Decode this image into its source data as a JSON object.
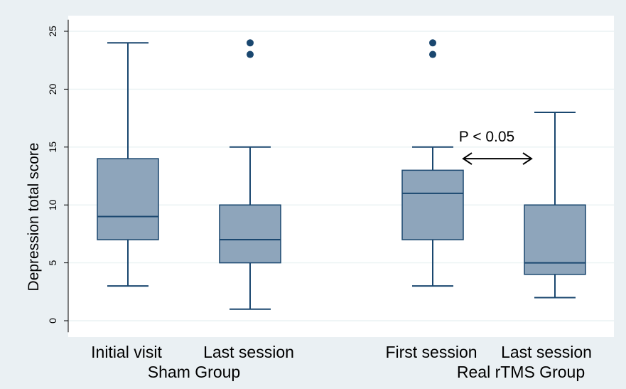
{
  "chart_data": {
    "type": "box",
    "ylabel": "Depression total score",
    "ylim": [
      -1,
      26
    ],
    "yticks": [
      0,
      5,
      10,
      15,
      20,
      25
    ],
    "grid": true,
    "boxes": [
      {
        "label": "Initial visit",
        "whisker_low": 3,
        "q1": 7,
        "median": 9,
        "q3": 14,
        "whisker_high": 24,
        "outliers": []
      },
      {
        "label": "Last session",
        "whisker_low": 1,
        "q1": 5,
        "median": 7,
        "q3": 10,
        "whisker_high": 15,
        "outliers": [
          23,
          24
        ]
      },
      {
        "label": "First session",
        "whisker_low": 3,
        "q1": 7,
        "median": 11,
        "q3": 13,
        "whisker_high": 15,
        "outliers": [
          23,
          24
        ]
      },
      {
        "label": "Last session",
        "whisker_low": 2,
        "q1": 4,
        "median": 5,
        "q3": 10,
        "whisker_high": 18,
        "outliers": []
      }
    ],
    "groups": [
      {
        "label": "Sham Group",
        "boxes": [
          0,
          1
        ]
      },
      {
        "label": "Real rTMS Group",
        "boxes": [
          2,
          3
        ]
      }
    ],
    "annotation": {
      "text": "P < 0.05",
      "y": 14,
      "between": [
        2,
        3
      ]
    },
    "colors": {
      "box_fill": "#8ea5bb",
      "box_edge": "#1a476f",
      "outlier": "#1a476f",
      "grid": "#eaf2f3",
      "background": "#eaf0f3",
      "plot_bg": "#ffffff"
    }
  }
}
